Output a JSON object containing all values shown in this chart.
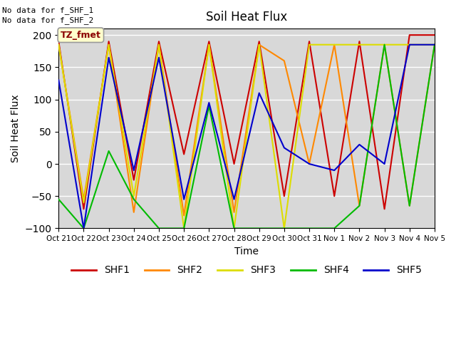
{
  "title": "Soil Heat Flux",
  "xlabel": "Time",
  "ylabel": "Soil Heat Flux",
  "ylim": [
    -100,
    210
  ],
  "yticks": [
    -100,
    -50,
    0,
    50,
    100,
    150,
    200
  ],
  "note_line1": "No data for f_SHF_1",
  "note_line2": "No data for f_SHF_2",
  "box_label": "TZ_fmet",
  "legend_labels": [
    "SHF1",
    "SHF2",
    "SHF3",
    "SHF4",
    "SHF5"
  ],
  "colors": {
    "SHF1": "#cc0000",
    "SHF2": "#ff8800",
    "SHF3": "#dddd00",
    "SHF4": "#00bb00",
    "SHF5": "#0000cc"
  },
  "background_color": "#d8d8d8",
  "x_tick_labels": [
    "Oct 21",
    "Oct 22",
    "Oct 23",
    "Oct 24",
    "Oct 25",
    "Oct 26",
    "Oct 27",
    "Oct 28",
    "Oct 29",
    "Oct 30",
    "Oct 31",
    "Nov 1",
    "Nov 2",
    "Nov 3",
    "Nov 4",
    "Nov 5"
  ],
  "SHF1_x": [
    0,
    1,
    1,
    2,
    2,
    3,
    3,
    4,
    4,
    5,
    5,
    6,
    6,
    7,
    7,
    8,
    8,
    9,
    9,
    10,
    10,
    11,
    11,
    12,
    12,
    13,
    13,
    14,
    14,
    15
  ],
  "SHF1_y": [
    190,
    190,
    -70,
    -70,
    190,
    190,
    -25,
    -25,
    190,
    190,
    15,
    15,
    190,
    190,
    0,
    0,
    190,
    190,
    -50,
    -50,
    190,
    190,
    -50,
    -50,
    190,
    190,
    -70,
    -70,
    200,
    200
  ],
  "SHF2_x": [
    0,
    1,
    1,
    2,
    2,
    3,
    3,
    4,
    4,
    5,
    5,
    6,
    6,
    7,
    7,
    8,
    8,
    9,
    9,
    10,
    10,
    11,
    11,
    12,
    12,
    13,
    13,
    14,
    14,
    15
  ],
  "SHF2_y": [
    185,
    185,
    -55,
    -55,
    185,
    185,
    -75,
    -75,
    185,
    185,
    -80,
    -80,
    185,
    185,
    -75,
    -75,
    185,
    185,
    160,
    160,
    0,
    0,
    185,
    185,
    -65,
    -65,
    185,
    185,
    -65,
    -65
  ],
  "SHF3_x": [
    0,
    1,
    1,
    2,
    2,
    3,
    3,
    4,
    4,
    5,
    5,
    6,
    6,
    7,
    7,
    8,
    8,
    9,
    9,
    10,
    10,
    11,
    11,
    12,
    12,
    13,
    13,
    14,
    14,
    15
  ],
  "SHF3_y": [
    185,
    185,
    -60,
    -60,
    185,
    185,
    -50,
    -50,
    185,
    185,
    -100,
    -100,
    185,
    185,
    -100,
    -100,
    185,
    185,
    -100,
    -100,
    185,
    185,
    185,
    185,
    185,
    185,
    185,
    185,
    185,
    185
  ],
  "SHF4_x": [
    0,
    1,
    1,
    2,
    2,
    3,
    3,
    4,
    4,
    5,
    5,
    6,
    6,
    7,
    7,
    8,
    8,
    9,
    9,
    10,
    10,
    11,
    11,
    12,
    12,
    13,
    13,
    14,
    14,
    15
  ],
  "SHF4_y": [
    -55,
    -55,
    -100,
    -100,
    20,
    20,
    -55,
    -55,
    -100,
    -100,
    -100,
    -100,
    90,
    90,
    -100,
    -100,
    -100,
    -100,
    -100,
    -100,
    -100,
    -100,
    -100,
    -100,
    -65,
    -65,
    185,
    185,
    -65,
    -65
  ],
  "SHF5_x": [
    0,
    1,
    1,
    2,
    2,
    3,
    3,
    4,
    4,
    5,
    5,
    6,
    6,
    7,
    7,
    8,
    8,
    9,
    9,
    10,
    10,
    11,
    11,
    12,
    12,
    13,
    13,
    14,
    14,
    15
  ],
  "SHF5_y": [
    130,
    130,
    -100,
    -100,
    165,
    165,
    -10,
    -10,
    165,
    165,
    -55,
    -55,
    95,
    95,
    -55,
    -55,
    110,
    110,
    25,
    25,
    0,
    0,
    -10,
    -10,
    30,
    30,
    0,
    0,
    185,
    185
  ],
  "SHF1_pts_x": [
    0,
    1,
    2,
    3,
    4,
    5,
    6,
    7,
    8,
    9,
    10,
    11,
    12,
    13,
    14,
    15
  ],
  "SHF1_pts_y": [
    190,
    -70,
    190,
    -25,
    190,
    15,
    190,
    0,
    190,
    -50,
    190,
    -50,
    190,
    -70,
    200,
    200
  ],
  "SHF2_pts_x": [
    0,
    1,
    2,
    3,
    4,
    5,
    6,
    7,
    8,
    9,
    10,
    11,
    12,
    13,
    14,
    15
  ],
  "SHF2_pts_y": [
    185,
    -55,
    185,
    -75,
    185,
    -80,
    185,
    -75,
    185,
    160,
    0,
    185,
    -65,
    185,
    -65,
    185
  ],
  "SHF3_pts_x": [
    0,
    1,
    2,
    3,
    4,
    5,
    6,
    7,
    8,
    9,
    10,
    11,
    12,
    13,
    14,
    15
  ],
  "SHF3_pts_y": [
    185,
    -60,
    185,
    -50,
    185,
    -100,
    185,
    -100,
    185,
    -100,
    185,
    185,
    185,
    185,
    185,
    185
  ],
  "SHF4_pts_x": [
    0,
    1,
    2,
    3,
    4,
    5,
    6,
    7,
    8,
    9,
    10,
    11,
    12,
    13,
    14,
    15
  ],
  "SHF4_pts_y": [
    -55,
    -100,
    20,
    -55,
    -100,
    -100,
    90,
    -100,
    -100,
    -100,
    -100,
    -100,
    -65,
    185,
    -65,
    185
  ],
  "SHF5_pts_x": [
    0,
    1,
    2,
    3,
    4,
    5,
    6,
    7,
    8,
    9,
    10,
    11,
    12,
    13,
    14,
    15
  ],
  "SHF5_pts_y": [
    130,
    -100,
    165,
    -10,
    165,
    -55,
    95,
    -55,
    110,
    25,
    0,
    -10,
    30,
    0,
    185,
    185
  ]
}
